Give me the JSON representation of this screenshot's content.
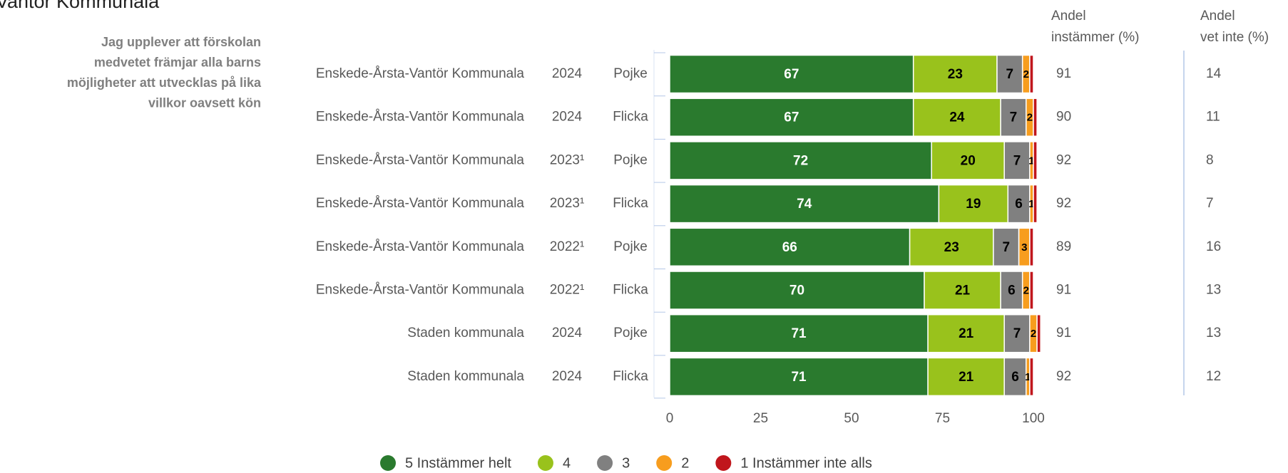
{
  "chart_data": {
    "type": "bar",
    "title": "Vantör Kommunala",
    "question": [
      "Jag upplever att förskolan",
      "medvetet främjar alla barns",
      "möjligheter att utvecklas på lika",
      "villkor oavsett kön"
    ],
    "units": [
      "Enskede-Årsta-Vantör Kommunala",
      "Enskede-Årsta-Vantör Kommunala",
      "Enskede-Årsta-Vantör Kommunala",
      "Enskede-Årsta-Vantör Kommunala",
      "Enskede-Årsta-Vantör Kommunala",
      "Enskede-Årsta-Vantör Kommunala",
      "Staden kommunala",
      "Staden kommunala"
    ],
    "years": [
      "2024",
      "2024",
      "2023¹",
      "2023¹",
      "2022¹",
      "2022¹",
      "2024",
      "2024"
    ],
    "groups": [
      "Pojke",
      "Flicka",
      "Pojke",
      "Flicka",
      "Pojke",
      "Flicka",
      "Pojke",
      "Flicka"
    ],
    "series": [
      {
        "name": "5 Instämmer helt",
        "color": "#2a7a2e",
        "values": [
          67,
          67,
          72,
          74,
          66,
          70,
          71,
          71
        ]
      },
      {
        "name": "4",
        "color": "#99c21c",
        "values": [
          23,
          24,
          20,
          19,
          23,
          21,
          21,
          21
        ]
      },
      {
        "name": "3",
        "color": "#808080",
        "values": [
          7,
          7,
          7,
          6,
          7,
          6,
          7,
          6
        ]
      },
      {
        "name": "2",
        "color": "#f79d1e",
        "values": [
          2,
          2,
          1,
          1,
          3,
          2,
          2,
          1
        ]
      },
      {
        "name": "1 Instämmer inte alls",
        "color": "#c0161c",
        "values": [
          1,
          1,
          1,
          1,
          1,
          1,
          1,
          1
        ]
      }
    ],
    "xlim": [
      0,
      100
    ],
    "xticks": [
      0,
      25,
      50,
      75,
      100
    ],
    "agree_header": [
      "Andel",
      "instämmer (%)"
    ],
    "agree": [
      91,
      90,
      92,
      92,
      89,
      91,
      91,
      92
    ],
    "dontknow_header": [
      "Andel",
      "vet inte (%)"
    ],
    "dontknow": [
      14,
      11,
      8,
      7,
      16,
      13,
      13,
      12
    ]
  }
}
